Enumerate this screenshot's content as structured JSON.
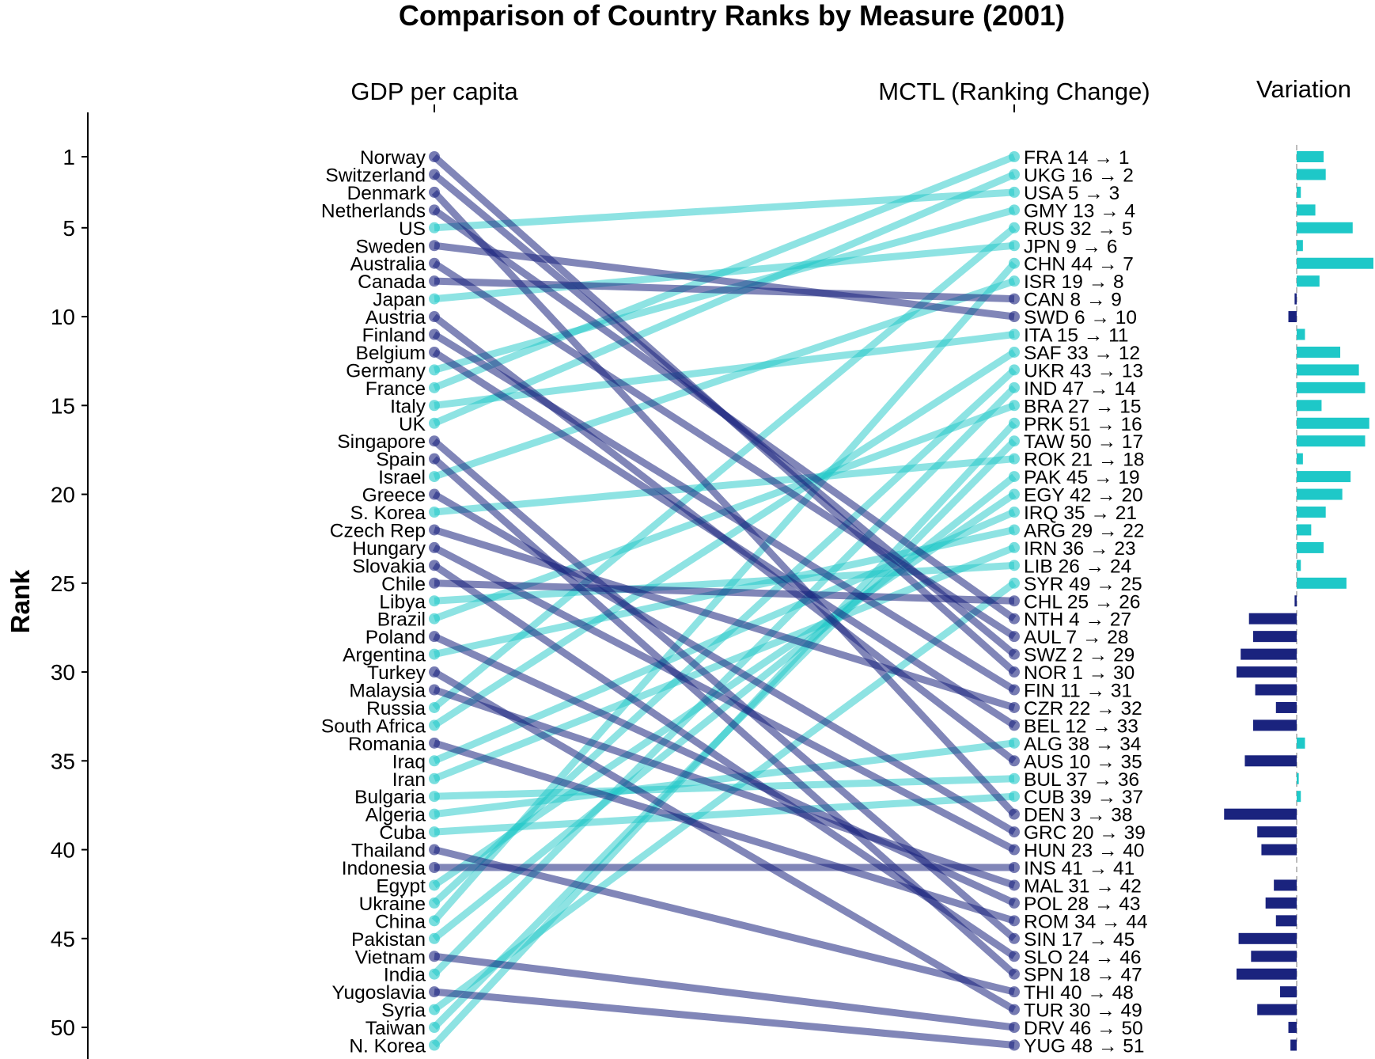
{
  "chart_data": {
    "type": "slope",
    "title": "Comparison of Country Ranks by Measure (2001)",
    "ylabel": "Rank",
    "left_column_label": "GDP per capita",
    "right_column_label": "MCTL (Ranking Change)",
    "variation_label": "Variation",
    "y_ticks": [
      1,
      5,
      10,
      15,
      20,
      25,
      30,
      35,
      40,
      45,
      50
    ],
    "ylim": [
      51,
      1
    ],
    "colors": {
      "improved": "#1ec8c8",
      "declined": "#1a237e"
    },
    "left_ranking": [
      "Norway",
      "Switzerland",
      "Denmark",
      "Netherlands",
      "US",
      "Sweden",
      "Australia",
      "Canada",
      "Japan",
      "Austria",
      "Finland",
      "Belgium",
      "Germany",
      "France",
      "Italy",
      "UK",
      "Singapore",
      "Spain",
      "Israel",
      "Greece",
      "S. Korea",
      "Czech Rep",
      "Hungary",
      "Slovakia",
      "Chile",
      "Libya",
      "Brazil",
      "Poland",
      "Argentina",
      "Turkey",
      "Malaysia",
      "Russia",
      "South Africa",
      "Romania",
      "Iraq",
      "Iran",
      "Bulgaria",
      "Algeria",
      "Cuba",
      "Thailand",
      "Indonesia",
      "Egypt",
      "Ukraine",
      "China",
      "Pakistan",
      "Vietnam",
      "India",
      "Yugoslavia",
      "Syria",
      "Taiwan",
      "N. Korea"
    ],
    "right_ranking": [
      {
        "code": "FRA",
        "from": 14,
        "to": 1
      },
      {
        "code": "UKG",
        "from": 16,
        "to": 2
      },
      {
        "code": "USA",
        "from": 5,
        "to": 3
      },
      {
        "code": "GMY",
        "from": 13,
        "to": 4
      },
      {
        "code": "RUS",
        "from": 32,
        "to": 5
      },
      {
        "code": "JPN",
        "from": 9,
        "to": 6
      },
      {
        "code": "CHN",
        "from": 44,
        "to": 7
      },
      {
        "code": "ISR",
        "from": 19,
        "to": 8
      },
      {
        "code": "CAN",
        "from": 8,
        "to": 9
      },
      {
        "code": "SWD",
        "from": 6,
        "to": 10
      },
      {
        "code": "ITA",
        "from": 15,
        "to": 11
      },
      {
        "code": "SAF",
        "from": 33,
        "to": 12
      },
      {
        "code": "UKR",
        "from": 43,
        "to": 13
      },
      {
        "code": "IND",
        "from": 47,
        "to": 14
      },
      {
        "code": "BRA",
        "from": 27,
        "to": 15
      },
      {
        "code": "PRK",
        "from": 51,
        "to": 16
      },
      {
        "code": "TAW",
        "from": 50,
        "to": 17
      },
      {
        "code": "ROK",
        "from": 21,
        "to": 18
      },
      {
        "code": "PAK",
        "from": 45,
        "to": 19
      },
      {
        "code": "EGY",
        "from": 42,
        "to": 20
      },
      {
        "code": "IRQ",
        "from": 35,
        "to": 21
      },
      {
        "code": "ARG",
        "from": 29,
        "to": 22
      },
      {
        "code": "IRN",
        "from": 36,
        "to": 23
      },
      {
        "code": "LIB",
        "from": 26,
        "to": 24
      },
      {
        "code": "SYR",
        "from": 49,
        "to": 25
      },
      {
        "code": "CHL",
        "from": 25,
        "to": 26
      },
      {
        "code": "NTH",
        "from": 4,
        "to": 27
      },
      {
        "code": "AUL",
        "from": 7,
        "to": 28
      },
      {
        "code": "SWZ",
        "from": 2,
        "to": 29
      },
      {
        "code": "NOR",
        "from": 1,
        "to": 30
      },
      {
        "code": "FIN",
        "from": 11,
        "to": 31
      },
      {
        "code": "CZR",
        "from": 22,
        "to": 32
      },
      {
        "code": "BEL",
        "from": 12,
        "to": 33
      },
      {
        "code": "ALG",
        "from": 38,
        "to": 34
      },
      {
        "code": "AUS",
        "from": 10,
        "to": 35
      },
      {
        "code": "BUL",
        "from": 37,
        "to": 36
      },
      {
        "code": "CUB",
        "from": 39,
        "to": 37
      },
      {
        "code": "DEN",
        "from": 3,
        "to": 38
      },
      {
        "code": "GRC",
        "from": 20,
        "to": 39
      },
      {
        "code": "HUN",
        "from": 23,
        "to": 40
      },
      {
        "code": "INS",
        "from": 41,
        "to": 41
      },
      {
        "code": "MAL",
        "from": 31,
        "to": 42
      },
      {
        "code": "POL",
        "from": 28,
        "to": 43
      },
      {
        "code": "ROM",
        "from": 34,
        "to": 44
      },
      {
        "code": "SIN",
        "from": 17,
        "to": 45
      },
      {
        "code": "SLO",
        "from": 24,
        "to": 46
      },
      {
        "code": "SPN",
        "from": 18,
        "to": 47
      },
      {
        "code": "THI",
        "from": 40,
        "to": 48
      },
      {
        "code": "TUR",
        "from": 30,
        "to": 49
      },
      {
        "code": "DRV",
        "from": 46,
        "to": 50
      },
      {
        "code": "YUG",
        "from": 48,
        "to": 51
      }
    ],
    "arrow": "→",
    "variation_scale_max": 37
  }
}
